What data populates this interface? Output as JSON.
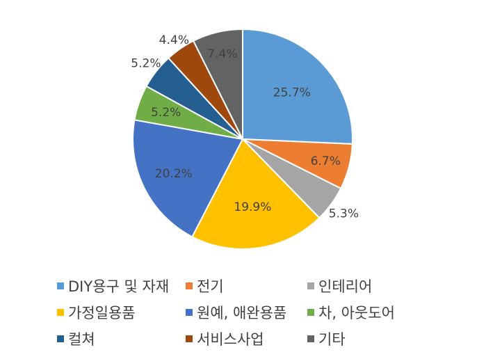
{
  "chart_data": {
    "type": "pie",
    "categories": [
      "DIY용구 및 자재",
      "전기",
      "인테리어",
      "가정일용품",
      "원예, 애완용품",
      "차, 아웃도어",
      "컬쳐",
      "서비스사업",
      "기타"
    ],
    "values": [
      25.7,
      6.7,
      5.3,
      19.9,
      20.2,
      5.2,
      5.2,
      4.4,
      7.4
    ],
    "labels": [
      "25.7%",
      "6.7%",
      "5.3%",
      "19.9%",
      "20.2%",
      "5.2%",
      "5.2%",
      "4.4%",
      "7.4%"
    ],
    "colors": [
      "#5B9BD5",
      "#ED7D31",
      "#A5A5A5",
      "#FFC000",
      "#4472C4",
      "#70AD47",
      "#255E91",
      "#9E480E",
      "#636363"
    ],
    "start_angle": "12 o'clock",
    "direction": "clockwise",
    "legend_position": "bottom"
  }
}
